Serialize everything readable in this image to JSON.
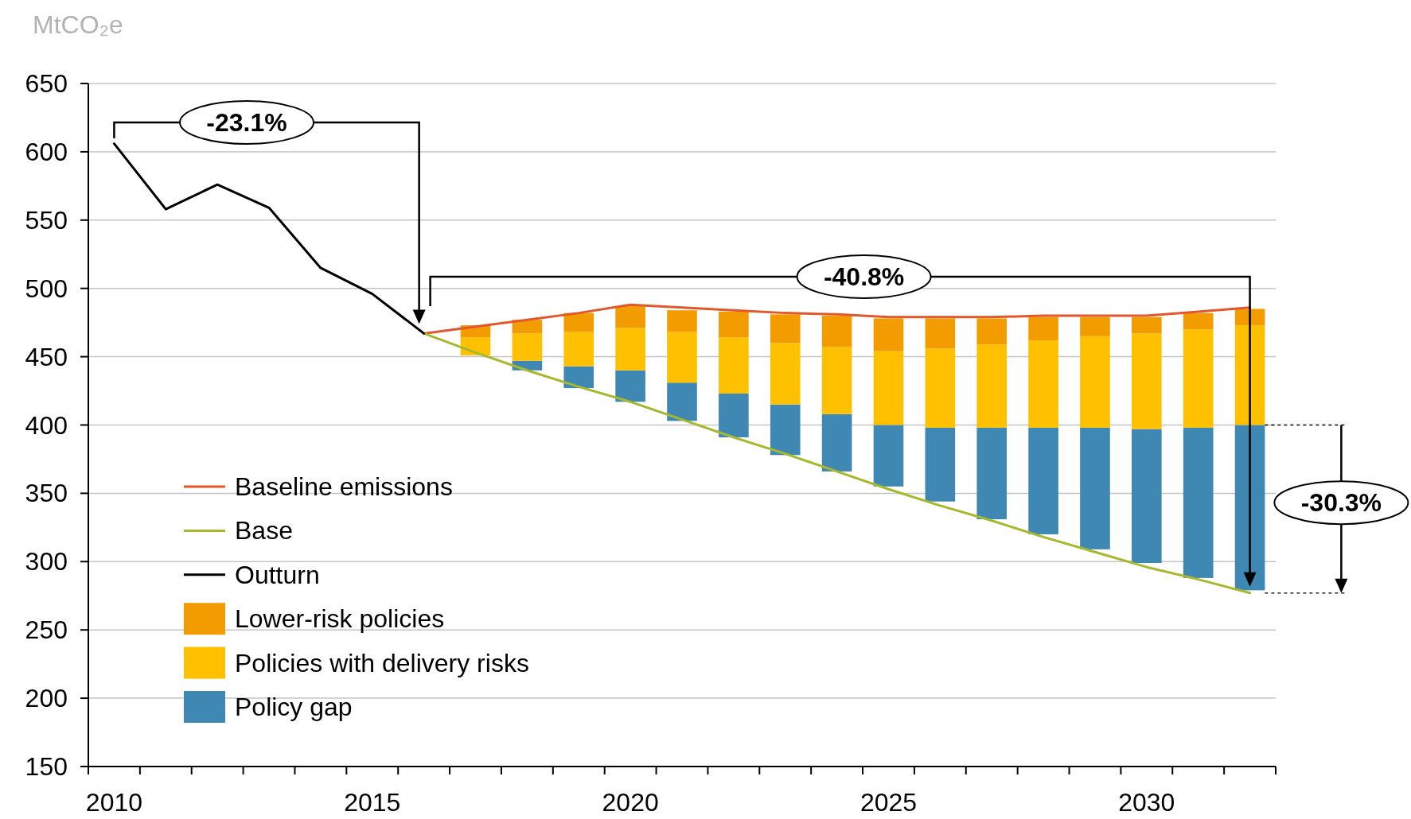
{
  "chart_data": {
    "type": "bar",
    "ylabel": "MtCO₂e",
    "categories": [
      "2010",
      null,
      null,
      null,
      null,
      "2015",
      null,
      null,
      null,
      null,
      "2020",
      null,
      null,
      null,
      null,
      "2025",
      null,
      null,
      null,
      null,
      "2030",
      null,
      null
    ],
    "series": [
      {
        "name": "Policy gap",
        "color": "#3f88b3",
        "base": [
          null,
          null,
          null,
          null,
          null,
          null,
          null,
          null,
          440,
          427,
          417,
          403,
          391,
          378,
          366,
          355,
          344,
          331,
          320,
          309,
          299,
          288,
          279
        ],
        "values": [
          null,
          null,
          null,
          null,
          null,
          null,
          null,
          null,
          7,
          16,
          23,
          28,
          32,
          37,
          42,
          45,
          54,
          67,
          78,
          89,
          98,
          110,
          121
        ]
      },
      {
        "name": "Policies with delivery risks",
        "color": "#ffc000",
        "base": [
          null,
          null,
          null,
          null,
          null,
          null,
          null,
          451,
          447,
          443,
          440,
          431,
          423,
          415,
          408,
          400,
          398,
          398,
          398,
          398,
          397,
          398,
          400
        ],
        "values": [
          null,
          null,
          null,
          null,
          null,
          null,
          null,
          13,
          20,
          25,
          31,
          37,
          41,
          45,
          49,
          54,
          58,
          61,
          64,
          67,
          70,
          72,
          73
        ]
      },
      {
        "name": "Lower-risk policies",
        "color": "#f39c00",
        "base": [
          null,
          null,
          null,
          null,
          null,
          null,
          null,
          464,
          467,
          468,
          471,
          468,
          464,
          460,
          457,
          454,
          456,
          459,
          462,
          465,
          467,
          470,
          473
        ],
        "values": [
          null,
          null,
          null,
          null,
          null,
          null,
          null,
          9,
          10,
          14,
          16,
          16,
          19,
          21,
          23,
          24,
          22,
          19,
          17,
          14,
          12,
          12,
          12
        ]
      },
      {
        "name": "Baseline emissions",
        "type": "line",
        "color": "#e2572b",
        "values": [
          null,
          null,
          null,
          null,
          null,
          null,
          467,
          472,
          477,
          482,
          488,
          486,
          484,
          482,
          481,
          479,
          479,
          479,
          480,
          480,
          480,
          483,
          486
        ]
      },
      {
        "name": "Base",
        "type": "line",
        "color": "#a7b82c",
        "values": [
          null,
          null,
          null,
          null,
          null,
          null,
          467,
          453,
          440,
          428,
          417,
          404,
          391,
          379,
          366,
          353,
          341,
          330,
          318,
          307,
          296,
          287,
          277
        ]
      },
      {
        "name": "Outturn",
        "type": "line",
        "color": "#000000",
        "values": [
          606,
          558,
          576,
          559,
          515,
          496,
          467,
          null,
          null,
          null,
          null,
          null,
          null,
          null,
          null,
          null,
          null,
          null,
          null,
          null,
          null,
          null,
          null
        ]
      }
    ],
    "ylim": [
      150,
      650
    ],
    "yticks": [
      150,
      200,
      250,
      300,
      350,
      400,
      450,
      500,
      550,
      600,
      650
    ],
    "grid": "y",
    "legend": "bottom left",
    "annotations": [
      "-23.1%",
      "-40.8%",
      "-30.3%"
    ]
  }
}
